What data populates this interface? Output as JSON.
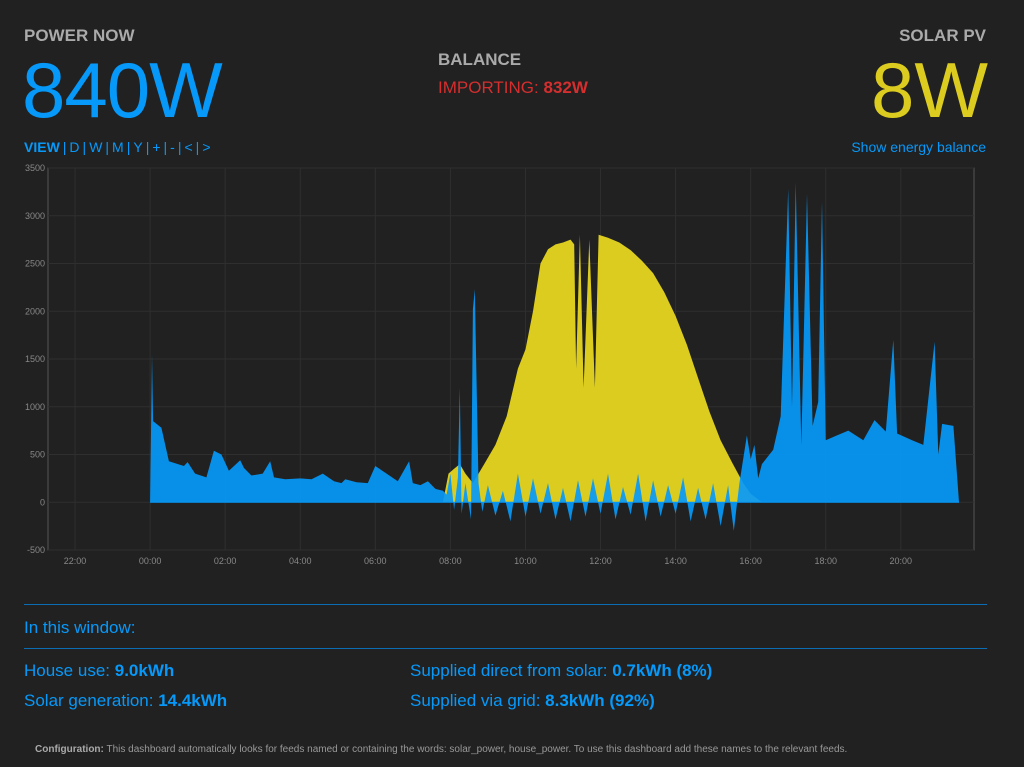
{
  "header": {
    "power_now_label": "POWER NOW",
    "power_now_value": "840W",
    "balance_label": "BALANCE",
    "balance_status": "IMPORTING: ",
    "balance_value": "832W",
    "solar_label": "SOLAR PV",
    "solar_value": "8W"
  },
  "nav": {
    "view_label": "VIEW",
    "buttons": [
      "D",
      "W",
      "M",
      "Y",
      "+",
      "-",
      "<",
      ">"
    ],
    "show_balance": "Show energy balance"
  },
  "colors": {
    "accent": "#0699fa",
    "solar": "#dccc1f",
    "import": "#d52e2e",
    "background": "#212121"
  },
  "chart_data": {
    "type": "area",
    "ylim": [
      -500,
      3500
    ],
    "yticks": [
      "3500",
      "3000",
      "2500",
      "2000",
      "1500",
      "1000",
      "500",
      "0",
      "-500"
    ],
    "xticks": [
      "22:00",
      "00:00",
      "02:00",
      "04:00",
      "06:00",
      "08:00",
      "10:00",
      "12:00",
      "14:00",
      "16:00",
      "18:00",
      "20:00"
    ],
    "series": [
      {
        "name": "house_power",
        "color": "#0699fa",
        "points": [
          [
            0.0,
            0
          ],
          [
            0.05,
            1550
          ],
          [
            0.08,
            850
          ],
          [
            0.3,
            780
          ],
          [
            0.5,
            430
          ],
          [
            0.9,
            380
          ],
          [
            1.0,
            420
          ],
          [
            1.2,
            300
          ],
          [
            1.5,
            260
          ],
          [
            1.7,
            540
          ],
          [
            1.9,
            500
          ],
          [
            2.1,
            330
          ],
          [
            2.4,
            440
          ],
          [
            2.5,
            360
          ],
          [
            2.7,
            280
          ],
          [
            3.0,
            300
          ],
          [
            3.2,
            430
          ],
          [
            3.3,
            260
          ],
          [
            3.6,
            240
          ],
          [
            4.0,
            250
          ],
          [
            4.3,
            240
          ],
          [
            4.6,
            300
          ],
          [
            4.9,
            220
          ],
          [
            5.1,
            200
          ],
          [
            5.2,
            240
          ],
          [
            5.5,
            210
          ],
          [
            5.8,
            200
          ],
          [
            6.0,
            380
          ],
          [
            6.3,
            300
          ],
          [
            6.6,
            220
          ],
          [
            6.9,
            430
          ],
          [
            7.0,
            200
          ],
          [
            7.2,
            180
          ],
          [
            7.4,
            220
          ],
          [
            7.6,
            140
          ],
          [
            7.8,
            120
          ],
          [
            7.9,
            80
          ],
          [
            8.0,
            300
          ],
          [
            8.1,
            -80
          ],
          [
            8.2,
            260
          ],
          [
            8.25,
            1200
          ],
          [
            8.3,
            -120
          ],
          [
            8.4,
            200
          ],
          [
            8.55,
            -180
          ],
          [
            8.6,
            2020
          ],
          [
            8.65,
            2230
          ],
          [
            8.75,
            200
          ],
          [
            8.85,
            -100
          ],
          [
            9.0,
            180
          ],
          [
            9.2,
            -140
          ],
          [
            9.4,
            120
          ],
          [
            9.6,
            -200
          ],
          [
            9.8,
            300
          ],
          [
            10.0,
            -150
          ],
          [
            10.2,
            250
          ],
          [
            10.4,
            -120
          ],
          [
            10.6,
            200
          ],
          [
            10.8,
            -180
          ],
          [
            11.0,
            150
          ],
          [
            11.2,
            -200
          ],
          [
            11.4,
            230
          ],
          [
            11.6,
            -150
          ],
          [
            11.8,
            250
          ],
          [
            12.0,
            -120
          ],
          [
            12.2,
            300
          ],
          [
            12.4,
            -180
          ],
          [
            12.6,
            160
          ],
          [
            12.8,
            -130
          ],
          [
            13.0,
            300
          ],
          [
            13.2,
            -200
          ],
          [
            13.4,
            230
          ],
          [
            13.6,
            -150
          ],
          [
            13.8,
            180
          ],
          [
            14.0,
            -120
          ],
          [
            14.2,
            260
          ],
          [
            14.4,
            -200
          ],
          [
            14.6,
            150
          ],
          [
            14.8,
            -180
          ],
          [
            15.0,
            200
          ],
          [
            15.2,
            -250
          ],
          [
            15.4,
            180
          ],
          [
            15.55,
            -300
          ],
          [
            15.7,
            200
          ],
          [
            15.9,
            700
          ],
          [
            16.0,
            450
          ],
          [
            16.1,
            600
          ],
          [
            16.2,
            250
          ],
          [
            16.3,
            400
          ],
          [
            16.6,
            550
          ],
          [
            16.8,
            900
          ],
          [
            17.0,
            3280
          ],
          [
            17.1,
            1000
          ],
          [
            17.2,
            3350
          ],
          [
            17.35,
            600
          ],
          [
            17.5,
            3230
          ],
          [
            17.65,
            800
          ],
          [
            17.8,
            1050
          ],
          [
            17.9,
            3150
          ],
          [
            18.0,
            650
          ],
          [
            18.3,
            700
          ],
          [
            18.6,
            750
          ],
          [
            19.0,
            650
          ],
          [
            19.3,
            860
          ],
          [
            19.6,
            740
          ],
          [
            19.8,
            1700
          ],
          [
            19.9,
            720
          ],
          [
            20.3,
            650
          ],
          [
            20.6,
            600
          ],
          [
            20.9,
            1680
          ],
          [
            21.0,
            500
          ],
          [
            21.1,
            820
          ],
          [
            21.4,
            800
          ],
          [
            21.55,
            0
          ]
        ]
      },
      {
        "name": "solar_power",
        "color": "#dccc1f",
        "points": [
          [
            7.8,
            0
          ],
          [
            7.95,
            300
          ],
          [
            8.1,
            350
          ],
          [
            8.25,
            400
          ],
          [
            8.4,
            300
          ],
          [
            8.6,
            200
          ],
          [
            8.9,
            400
          ],
          [
            9.2,
            600
          ],
          [
            9.5,
            900
          ],
          [
            9.8,
            1400
          ],
          [
            10.0,
            1600
          ],
          [
            10.2,
            2000
          ],
          [
            10.4,
            2500
          ],
          [
            10.6,
            2650
          ],
          [
            10.8,
            2700
          ],
          [
            11.0,
            2720
          ],
          [
            11.2,
            2750
          ],
          [
            11.3,
            2700
          ],
          [
            11.35,
            1400
          ],
          [
            11.45,
            2800
          ],
          [
            11.55,
            1200
          ],
          [
            11.7,
            2750
          ],
          [
            11.85,
            1200
          ],
          [
            11.95,
            2800
          ],
          [
            12.2,
            2770
          ],
          [
            12.5,
            2720
          ],
          [
            12.8,
            2640
          ],
          [
            13.1,
            2530
          ],
          [
            13.4,
            2400
          ],
          [
            13.7,
            2200
          ],
          [
            14.0,
            1950
          ],
          [
            14.3,
            1650
          ],
          [
            14.6,
            1300
          ],
          [
            14.9,
            950
          ],
          [
            15.2,
            650
          ],
          [
            15.5,
            420
          ],
          [
            15.8,
            200
          ],
          [
            16.0,
            90
          ],
          [
            16.3,
            0
          ]
        ]
      }
    ]
  },
  "window_summary": {
    "title": "In this window:",
    "house_label": "House use: ",
    "house_value": "9.0kWh",
    "solar_label": "Solar generation: ",
    "solar_value": "14.4kWh",
    "direct_label": "Supplied direct from solar: ",
    "direct_value": "0.7kWh (8%)",
    "grid_label": "Supplied via grid: ",
    "grid_value": "8.3kWh (92%)"
  },
  "footer": {
    "config_label": "Configuration:",
    "config_text": " This dashboard automatically looks for feeds named or containing the words: solar_power, house_power. To use this dashboard add these names to the relevant feeds."
  }
}
